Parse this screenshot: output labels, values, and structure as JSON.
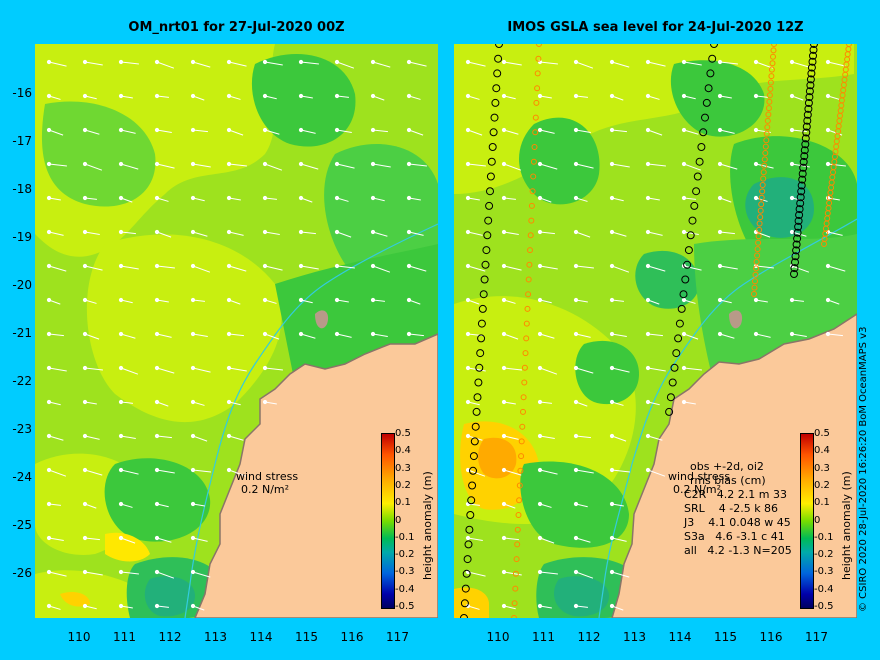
{
  "left_panel": {
    "title": "OM_nrt01 for 27-Jul-2020 00Z",
    "wind_stress_label": "wind stress",
    "wind_stress_value": "0.2 N/m²"
  },
  "right_panel": {
    "title": "IMOS GSLA sea level  for 24-Jul-2020 12Z",
    "wind_stress_label": "wind stress",
    "wind_stress_value": "0.2 N/m²",
    "stats_header": "obs +-2d, oi2",
    "stats_subheader": "rms bias (cm)",
    "stats_rows": [
      "C2R   4.2 2.1 m 33",
      "SRL    4 -2.5 k 86",
      "J3    4.1 0.048 w 45",
      "S3a   4.6 -3.1 c 41",
      "all   4.2 -1.3 N=205"
    ]
  },
  "y_axis_labels": [
    "-16",
    "-17",
    "-18",
    "-19",
    "-20",
    "-21",
    "-22",
    "-23",
    "-24",
    "-25",
    "-26"
  ],
  "x_axis_labels": [
    "110",
    "111",
    "112",
    "113",
    "114",
    "115",
    "116",
    "117"
  ],
  "colorbar": {
    "title": "height anomaly (m)",
    "ticks": [
      "0.5",
      "0.4",
      "0.3",
      "0.2",
      "0.1",
      "0",
      "-0.1",
      "-0.2",
      "-0.3",
      "-0.4",
      "-0.5"
    ],
    "colors": {
      "high": "#c00000",
      "mid": "#77dd00",
      "low": "#000060"
    }
  },
  "credit": "© CSIRO 2020   28-Jul-2020 16:26:20 BoM OceanMAPS v3",
  "colors": {
    "background": "#00ccff",
    "land": "#fbc99a",
    "coast": "#a08878",
    "isobath": "#33ccdd"
  }
}
